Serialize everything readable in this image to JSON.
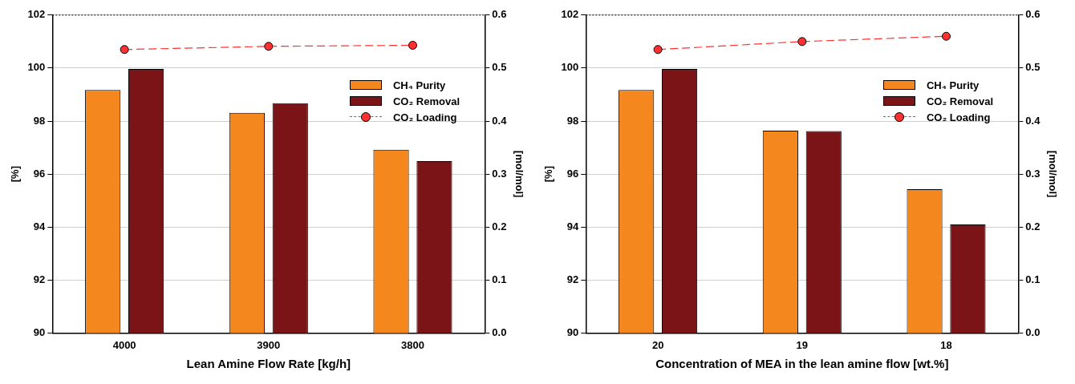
{
  "chart_data": [
    {
      "type": "bar",
      "categories": [
        "4000",
        "3900",
        "3800"
      ],
      "xlabel": "Lean Amine Flow Rate [kg/h]",
      "ylabel": "[%]",
      "y2label": "[mol/mol]",
      "ylim": [
        90,
        102
      ],
      "yticks": [
        90,
        92,
        94,
        96,
        98,
        100,
        102
      ],
      "y2lim": [
        0,
        0.6
      ],
      "y2ticks": [
        {
          "value": 0,
          "label": "0.0"
        },
        0.1,
        0.2,
        0.3,
        0.4,
        0.5,
        0.6
      ],
      "grid": "y",
      "legend": "top right",
      "series": [
        {
          "name": "CH₄ Purity",
          "color": "#f5871f",
          "values": [
            99.17,
            98.31,
            96.92
          ]
        },
        {
          "name": "CO₂ Removal",
          "color": "#7b1416",
          "values": [
            99.97,
            98.67,
            96.49
          ]
        },
        {
          "name": "CO₂ Loading",
          "type": "line",
          "axis": "y2",
          "color": "#ff3030",
          "marker": "circle",
          "line_style": "dashed",
          "values": [
            0.535,
            0.541,
            0.543
          ]
        }
      ]
    },
    {
      "type": "bar",
      "categories": [
        "20",
        "19",
        "18"
      ],
      "xlabel": "Concentration of MEA in the lean amine flow [wt.%]",
      "ylabel": "[%]",
      "y2label": "[mol/mol]",
      "ylim": [
        90,
        102
      ],
      "yticks": [
        90,
        92,
        94,
        96,
        98,
        100,
        102
      ],
      "y2lim": [
        0,
        0.6
      ],
      "y2ticks": [
        {
          "value": 0,
          "label": "0.0"
        },
        0.1,
        0.2,
        0.3,
        0.4,
        0.5,
        0.6
      ],
      "grid": "y",
      "legend": "top right",
      "series": [
        {
          "name": "CH₄ Purity",
          "color": "#f5871f",
          "values": [
            99.17,
            97.64,
            95.43
          ]
        },
        {
          "name": "CO₂ Removal",
          "color": "#7b1416",
          "values": [
            99.97,
            97.62,
            94.1
          ]
        },
        {
          "name": "CO₂ Loading",
          "type": "line",
          "axis": "y2",
          "color": "#ff3030",
          "marker": "circle",
          "line_style": "dashed",
          "values": [
            0.535,
            0.55,
            0.56
          ]
        }
      ]
    }
  ]
}
